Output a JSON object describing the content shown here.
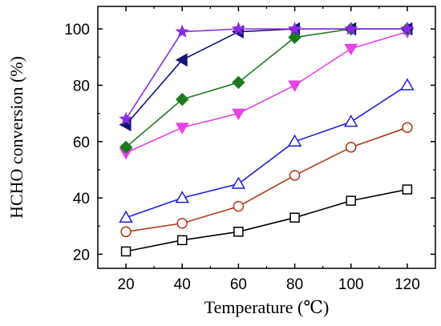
{
  "chart_data": {
    "type": "line",
    "title": "",
    "xlabel": "Temperature (℃)",
    "ylabel": "HCHO conversion (%)",
    "xlim": [
      10,
      130
    ],
    "ylim": [
      15,
      108
    ],
    "xticks": [
      20,
      40,
      60,
      80,
      100,
      120
    ],
    "yticks": [
      20,
      40,
      60,
      80,
      100
    ],
    "grid": false,
    "legend": "none",
    "x": [
      20,
      40,
      60,
      80,
      100,
      120
    ],
    "series": [
      {
        "marker": "square-open",
        "color": "#000000",
        "values": [
          21,
          25,
          28,
          33,
          39,
          43
        ]
      },
      {
        "marker": "circle-open",
        "color": "#B03A1A",
        "values": [
          28,
          31,
          37,
          48,
          58,
          65
        ]
      },
      {
        "marker": "triangle-up-open",
        "color": "#1F1FE0",
        "values": [
          33,
          40,
          45,
          60,
          67,
          80
        ]
      },
      {
        "marker": "triangle-down",
        "color": "#E642E6",
        "values": [
          56,
          65,
          70,
          80,
          93,
          99
        ]
      },
      {
        "marker": "diamond",
        "color": "#1B7A1B",
        "values": [
          58,
          75,
          81,
          97,
          100,
          100
        ]
      },
      {
        "marker": "triangle-left",
        "color": "#14147A",
        "values": [
          66,
          89,
          99,
          100,
          100,
          100
        ]
      },
      {
        "marker": "star",
        "color": "#8A2BE2",
        "values": [
          68,
          99,
          100,
          100,
          100,
          100
        ]
      }
    ]
  }
}
